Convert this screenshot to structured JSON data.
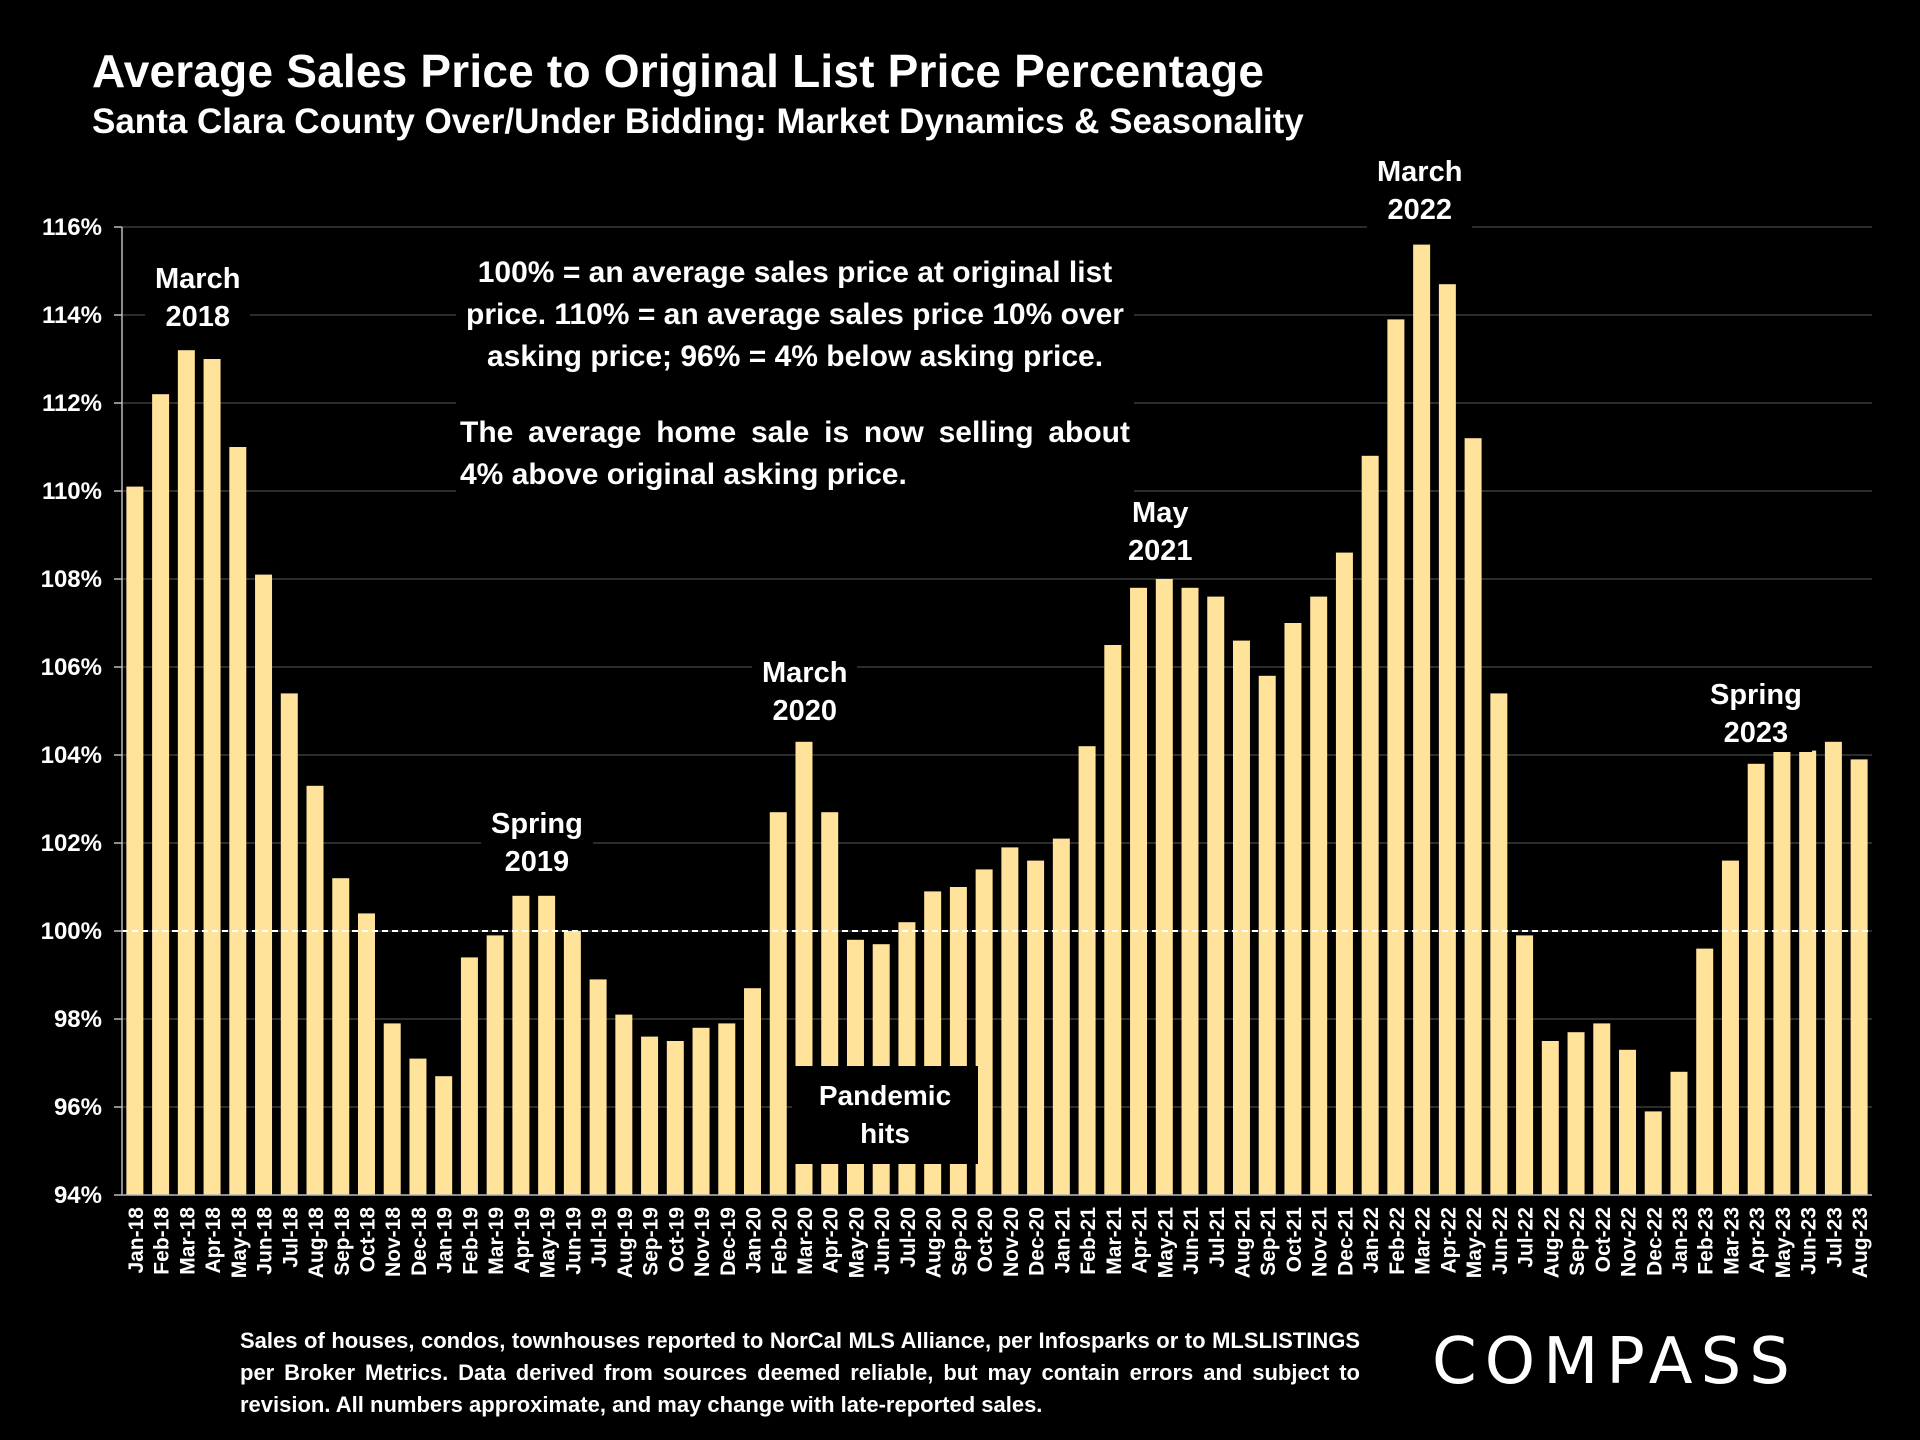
{
  "title": "Average Sales Price to Original List Price Percentage",
  "subtitle": "Santa Clara County Over/Under Bidding: Market Dynamics & Seasonality",
  "note": {
    "line1": "100% = an average sales price at original list price. 110% = an average sales price 10% over asking price; 96% = 4% below asking price.",
    "line2": "The average home sale is now selling about 4% above original asking price."
  },
  "annotations": {
    "mar2018": [
      "March",
      "2018"
    ],
    "spring2019": [
      "Spring",
      "2019"
    ],
    "mar2020": [
      "March",
      "2020"
    ],
    "may2021": [
      "May",
      "2021"
    ],
    "mar2022": [
      "March",
      "2022"
    ],
    "spring2023": [
      "Spring",
      "2023"
    ],
    "pandemic": [
      "Pandemic",
      "hits"
    ]
  },
  "source_note": "Sales of houses, condos, townhouses reported to NorCal MLS Alliance, per Infosparks or to MLSLISTINGS per Broker Metrics. Data derived from sources deemed reliable, but may contain errors and subject to revision. All numbers approximate, and may change with late-reported sales.",
  "logo_text": "COMPASS",
  "colors": {
    "background": "#000000",
    "bar": "#FFE39B",
    "grid": "#3a3a3a",
    "text": "#FFFFFF"
  },
  "chart_data": {
    "type": "bar",
    "ylim": [
      94,
      116
    ],
    "y_ticks": [
      "94%",
      "96%",
      "98%",
      "100%",
      "102%",
      "104%",
      "106%",
      "108%",
      "110%",
      "112%",
      "114%",
      "116%"
    ],
    "reference_line": 100,
    "grid": true,
    "categories": [
      "Jan-18",
      "Feb-18",
      "Mar-18",
      "Apr-18",
      "May-18",
      "Jun-18",
      "Jul-18",
      "Aug-18",
      "Sep-18",
      "Oct-18",
      "Nov-18",
      "Dec-18",
      "Jan-19",
      "Feb-19",
      "Mar-19",
      "Apr-19",
      "May-19",
      "Jun-19",
      "Jul-19",
      "Aug-19",
      "Sep-19",
      "Oct-19",
      "Nov-19",
      "Dec-19",
      "Jan-20",
      "Feb-20",
      "Mar-20",
      "Apr-20",
      "May-20",
      "Jun-20",
      "Jul-20",
      "Aug-20",
      "Sep-20",
      "Oct-20",
      "Nov-20",
      "Dec-20",
      "Jan-21",
      "Feb-21",
      "Mar-21",
      "Apr-21",
      "May-21",
      "Jun-21",
      "Jul-21",
      "Aug-21",
      "Sep-21",
      "Oct-21",
      "Nov-21",
      "Dec-21",
      "Jan-22",
      "Feb-22",
      "Mar-22",
      "Apr-22",
      "May-22",
      "Jun-22",
      "Jul-22",
      "Aug-22",
      "Sep-22",
      "Oct-22",
      "Nov-22",
      "Dec-22",
      "Jan-23",
      "Feb-23",
      "Mar-23",
      "Apr-23",
      "May-23",
      "Jun-23",
      "Jul-23",
      "Aug-23"
    ],
    "values": [
      110.1,
      112.2,
      113.2,
      113.0,
      111.0,
      108.1,
      105.4,
      103.3,
      101.2,
      100.4,
      97.9,
      97.1,
      96.7,
      99.4,
      99.9,
      100.8,
      100.8,
      100.0,
      98.9,
      98.1,
      97.6,
      97.5,
      97.8,
      97.9,
      98.7,
      102.7,
      104.3,
      102.7,
      99.8,
      99.7,
      100.2,
      100.9,
      101.0,
      101.4,
      101.9,
      101.6,
      102.1,
      104.2,
      106.5,
      107.8,
      108.0,
      107.8,
      107.6,
      106.6,
      105.8,
      107.0,
      107.6,
      108.6,
      110.8,
      113.9,
      115.6,
      114.7,
      111.2,
      105.4,
      99.9,
      97.5,
      97.7,
      97.9,
      97.3,
      95.9,
      96.8,
      99.6,
      101.6,
      103.8,
      104.1,
      104.1,
      104.3,
      103.9
    ]
  }
}
